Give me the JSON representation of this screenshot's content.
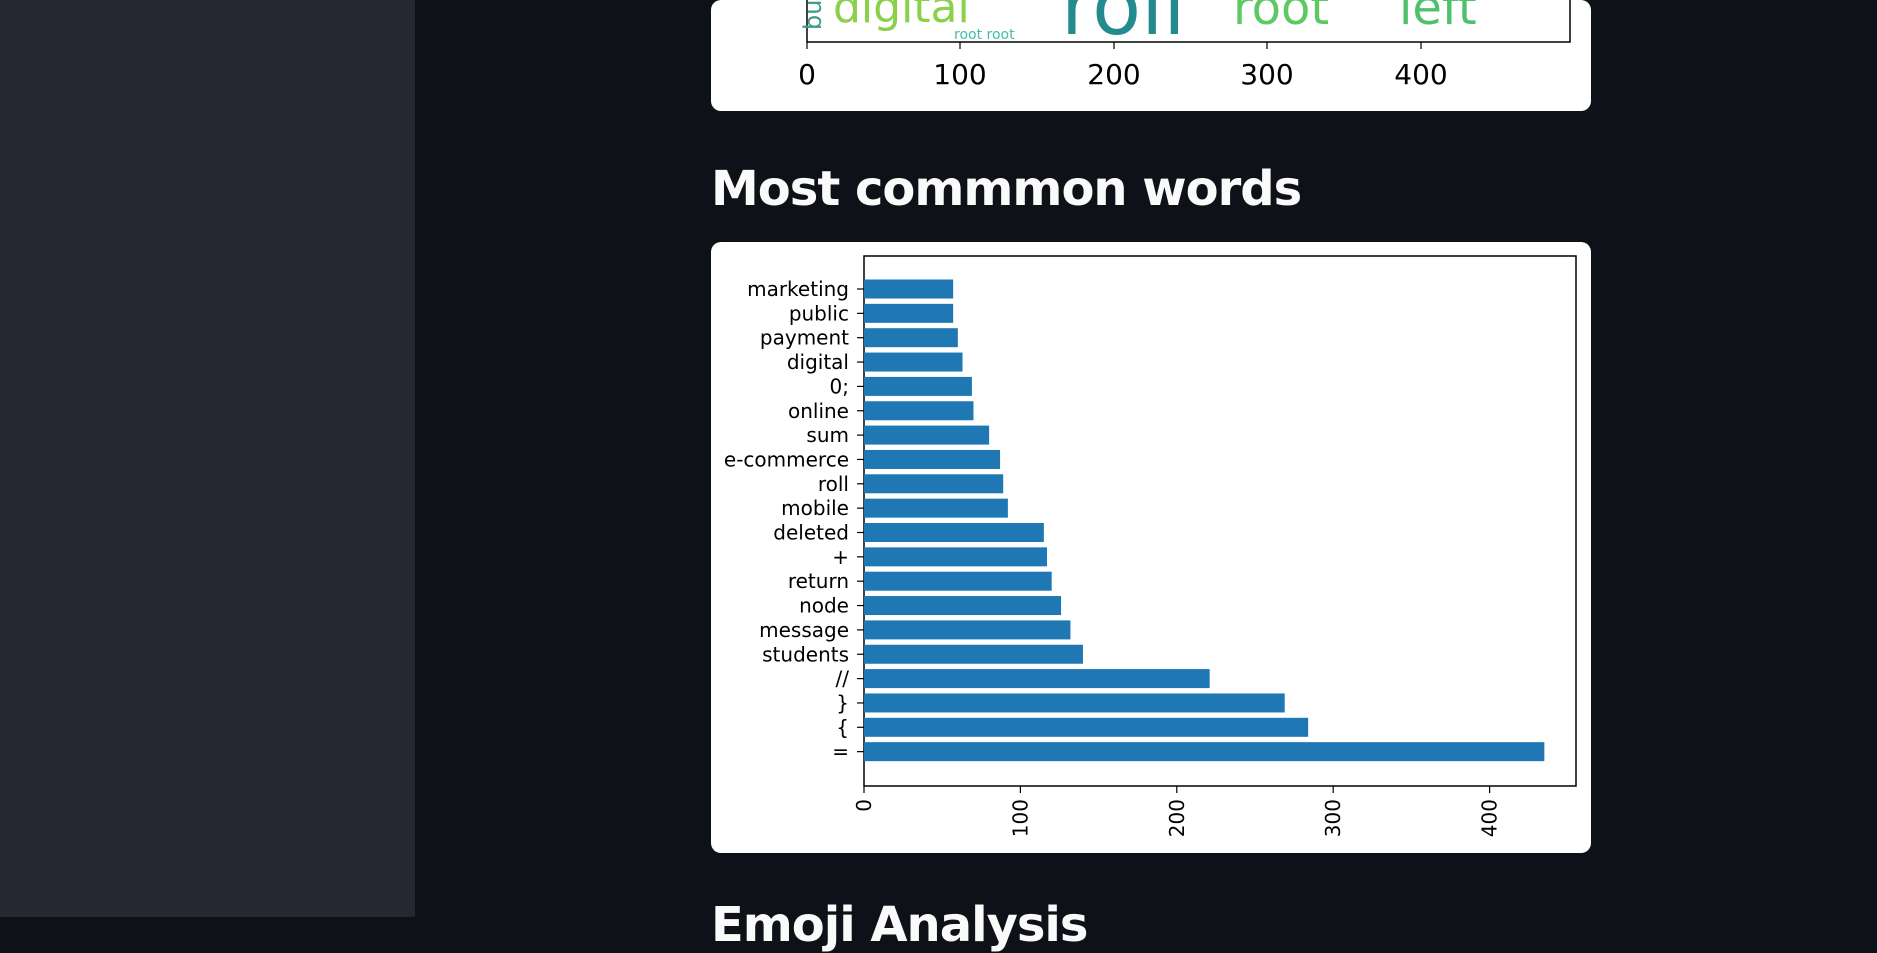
{
  "sidebar": {},
  "wordcloud": {
    "words": [
      {
        "text": "bu",
        "color": "#3b9b87"
      },
      {
        "text": "digital",
        "color": "#8ad04a"
      },
      {
        "text": "roll",
        "color": "#238a8d"
      },
      {
        "text": "root",
        "color": "#5ec962"
      },
      {
        "text": "left",
        "color": "#4fc16b"
      },
      {
        "text": "root root",
        "color": "#3fbcae"
      }
    ],
    "xticks": [
      "0",
      "100",
      "200",
      "300",
      "400"
    ]
  },
  "headings": {
    "most_common": "Most commmon words",
    "next_section": "Emoji Analysis"
  },
  "chart_data": {
    "type": "bar",
    "orientation": "horizontal",
    "categories": [
      "=",
      "{",
      "}",
      "//",
      "students",
      "message",
      "node",
      "return",
      "+",
      "deleted",
      "mobile",
      "roll",
      "e-commerce",
      "sum",
      "online",
      "0;",
      "digital",
      "payment",
      "public",
      "marketing"
    ],
    "values": [
      435,
      284,
      269,
      221,
      140,
      132,
      126,
      120,
      117,
      115,
      92,
      89,
      87,
      80,
      70,
      69,
      63,
      60,
      57,
      57
    ],
    "xticks": [
      "0",
      "100",
      "200",
      "300",
      "400"
    ],
    "xlim": [
      0,
      455
    ],
    "bar_color": "#1f77b4",
    "title": "",
    "xlabel": "",
    "ylabel": "",
    "grid": false
  }
}
